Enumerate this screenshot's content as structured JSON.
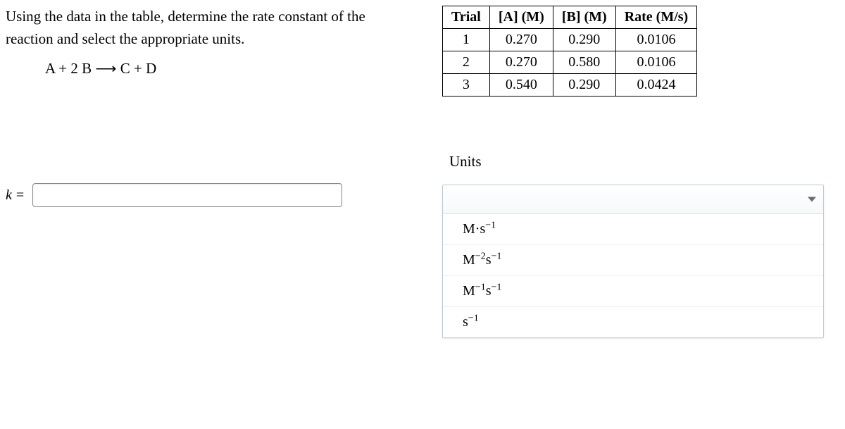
{
  "prompt_line1": "Using the data in the table, determine the rate constant of the",
  "prompt_line2": "reaction and select the appropriate units.",
  "equation": "A + 2 B ⟶ C + D",
  "k_var": "k",
  "k_eq": "=",
  "table": {
    "headers": [
      "Trial",
      "[A] (M)",
      "[B] (M)",
      "Rate (M/s)"
    ],
    "rows": [
      [
        "1",
        "0.270",
        "0.290",
        "0.0106"
      ],
      [
        "2",
        "0.270",
        "0.580",
        "0.0106"
      ],
      [
        "3",
        "0.540",
        "0.290",
        "0.0424"
      ]
    ],
    "border_color": "#000000",
    "cell_padding": "4px 12px",
    "font_size": 20
  },
  "units_label": "Units",
  "dropdown": {
    "selected": "",
    "options_html": [
      "M·s<sup>−1</sup>",
      "M<sup>−2</sup>s<sup>−1</sup>",
      "M<sup>−1</sup>s<sup>−1</sup>",
      "s<sup>−1</sup>"
    ],
    "border_color": "#bfcbd4",
    "option_bg": "#ffffff"
  },
  "colors": {
    "background": "#ffffff",
    "text": "#000000",
    "input_border": "#8a8a8a"
  }
}
